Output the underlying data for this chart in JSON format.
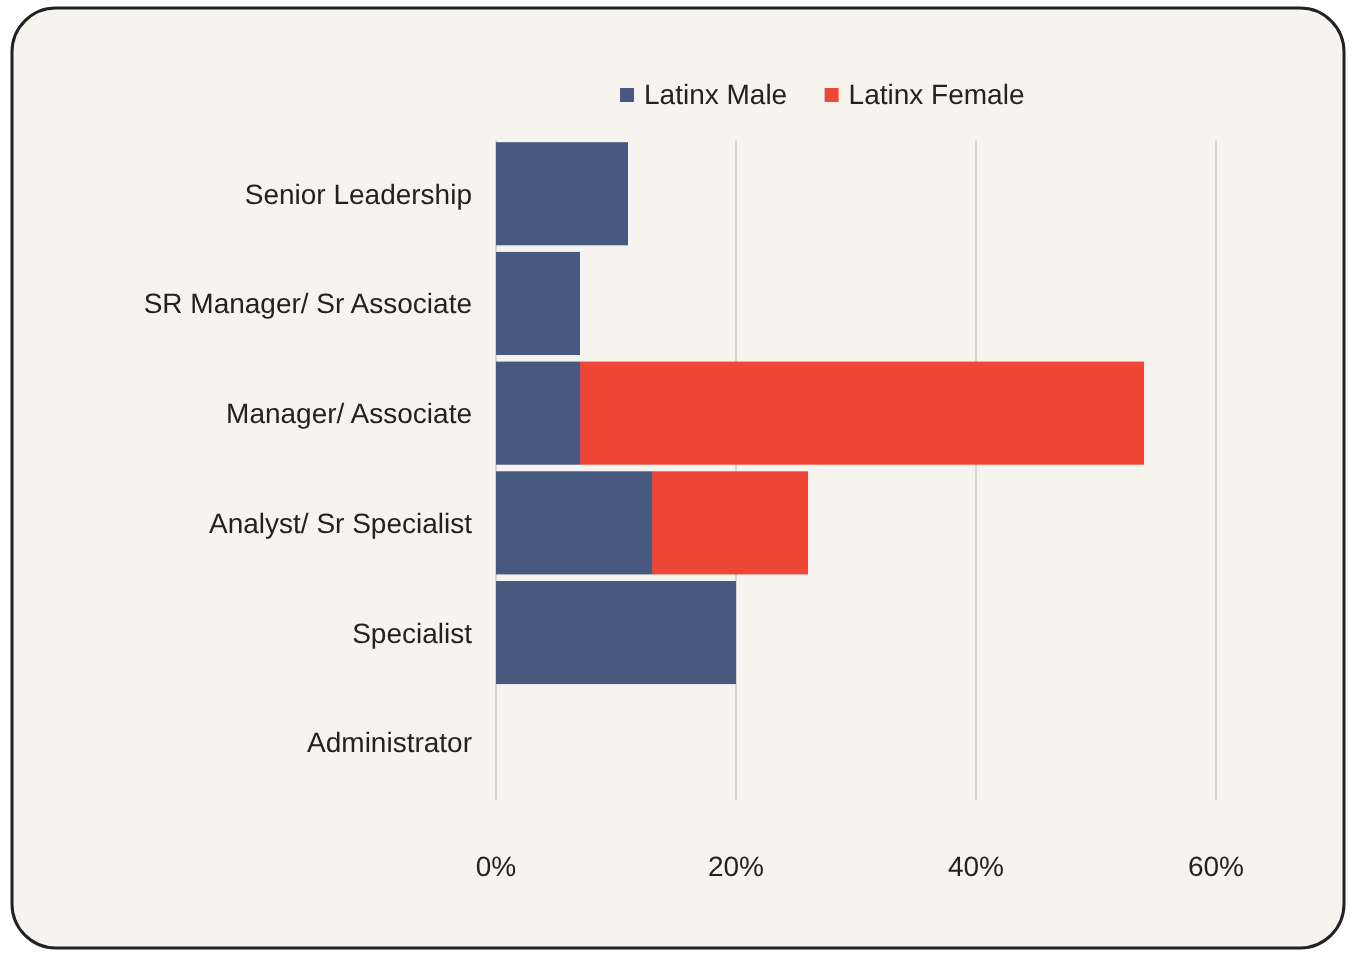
{
  "chart_data": {
    "type": "bar",
    "orientation": "horizontal",
    "stacked": true,
    "categories": [
      "Senior Leadership",
      "SR Manager/ Sr Associate",
      "Manager/ Associate",
      "Analyst/ Sr Specialist",
      "Specialist",
      "Administrator"
    ],
    "series": [
      {
        "name": "Latinx Male",
        "color": "#47597f",
        "values": [
          11,
          7,
          7,
          13,
          20,
          0
        ]
      },
      {
        "name": "Latinx Female",
        "color": "#ee4637",
        "values": [
          0,
          0,
          47,
          13,
          0,
          0
        ]
      }
    ],
    "xlim": [
      0,
      60
    ],
    "xticks": [
      {
        "value": 0,
        "label": "0%"
      },
      {
        "value": 20,
        "label": "20%"
      },
      {
        "value": 40,
        "label": "40%"
      },
      {
        "value": 60,
        "label": "60%"
      }
    ],
    "grid": "x",
    "legend": "top"
  }
}
